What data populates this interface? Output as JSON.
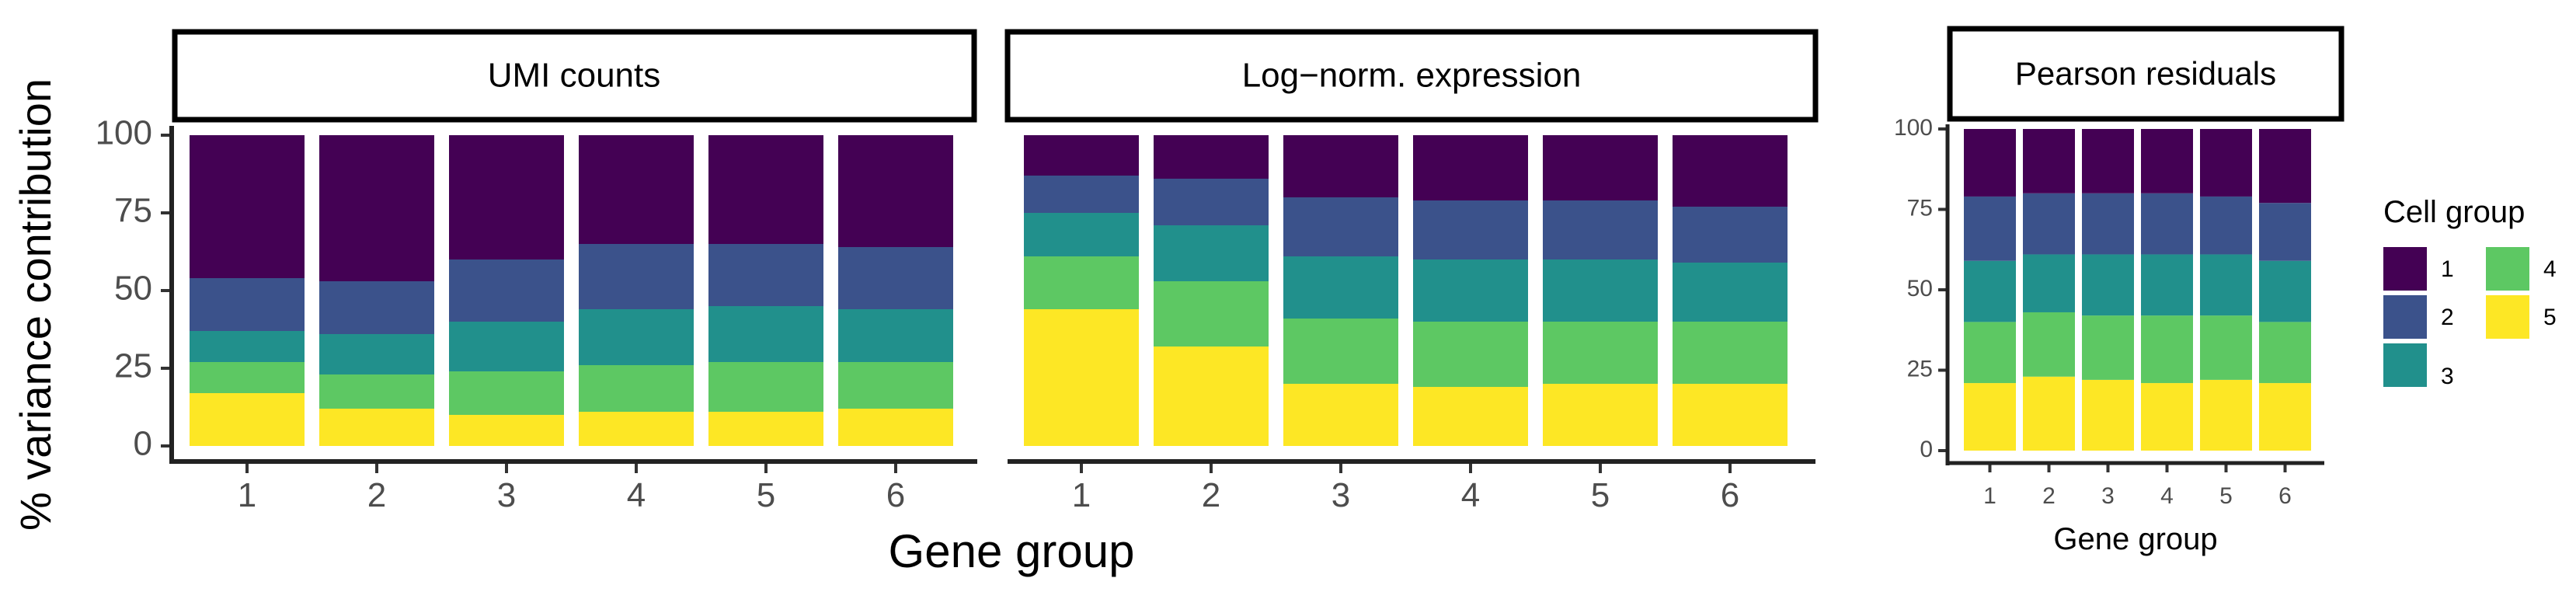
{
  "colors": {
    "group_1": "#440154",
    "group_2": "#3b528b",
    "group_3": "#21908c",
    "group_4": "#5dc863",
    "group_5": "#fde725"
  },
  "shared": {
    "ylabel": "% variance contribution",
    "xlabel": "Gene group"
  },
  "legend": {
    "title": "Cell group",
    "items": [
      "1",
      "2",
      "3",
      "4",
      "5"
    ]
  },
  "chart_data": [
    {
      "type": "bar",
      "stacked": true,
      "title": "UMI counts",
      "xlabel": "Gene group",
      "ylabel": "% variance contribution",
      "ylim": [
        0,
        100
      ],
      "yticks": [
        0,
        25,
        50,
        75,
        100
      ],
      "categories": [
        "1",
        "2",
        "3",
        "4",
        "5",
        "6"
      ],
      "stack_order_bottom_to_top": [
        "5",
        "4",
        "3",
        "2",
        "1"
      ],
      "series": [
        {
          "name": "1",
          "values": [
            46,
            47,
            40,
            35,
            35,
            36
          ]
        },
        {
          "name": "2",
          "values": [
            17,
            17,
            20,
            21,
            20,
            20
          ]
        },
        {
          "name": "3",
          "values": [
            10,
            13,
            16,
            18,
            18,
            17
          ]
        },
        {
          "name": "4",
          "values": [
            10,
            11,
            14,
            15,
            16,
            15
          ]
        },
        {
          "name": "5",
          "values": [
            17,
            12,
            10,
            11,
            11,
            12
          ]
        }
      ]
    },
    {
      "type": "bar",
      "stacked": true,
      "title": "Log−norm. expression",
      "xlabel": "Gene group",
      "ylabel": "% variance contribution",
      "ylim": [
        0,
        100
      ],
      "yticks": [
        0,
        25,
        50,
        75,
        100
      ],
      "categories": [
        "1",
        "2",
        "3",
        "4",
        "5",
        "6"
      ],
      "stack_order_bottom_to_top": [
        "5",
        "4",
        "3",
        "2",
        "1"
      ],
      "series": [
        {
          "name": "1",
          "values": [
            13,
            14,
            20,
            21,
            21,
            23
          ]
        },
        {
          "name": "2",
          "values": [
            12,
            15,
            19,
            19,
            19,
            18
          ]
        },
        {
          "name": "3",
          "values": [
            14,
            18,
            20,
            20,
            20,
            19
          ]
        },
        {
          "name": "4",
          "values": [
            17,
            21,
            21,
            21,
            20,
            20
          ]
        },
        {
          "name": "5",
          "values": [
            44,
            32,
            20,
            19,
            20,
            20
          ]
        }
      ]
    },
    {
      "type": "bar",
      "stacked": true,
      "title": "Pearson residuals",
      "xlabel": "Gene group",
      "ylabel": "% variance contribution",
      "ylim": [
        0,
        100
      ],
      "yticks": [
        0,
        25,
        50,
        75,
        100
      ],
      "categories": [
        "1",
        "2",
        "3",
        "4",
        "5",
        "6"
      ],
      "stack_order_bottom_to_top": [
        "5",
        "4",
        "3",
        "2",
        "1"
      ],
      "series": [
        {
          "name": "1",
          "values": [
            21,
            20,
            20,
            20,
            21,
            23
          ]
        },
        {
          "name": "2",
          "values": [
            20,
            19,
            19,
            19,
            18,
            18
          ]
        },
        {
          "name": "3",
          "values": [
            19,
            18,
            19,
            19,
            19,
            19
          ]
        },
        {
          "name": "4",
          "values": [
            19,
            20,
            20,
            21,
            20,
            19
          ]
        },
        {
          "name": "5",
          "values": [
            21,
            23,
            22,
            21,
            22,
            21
          ]
        }
      ]
    }
  ]
}
